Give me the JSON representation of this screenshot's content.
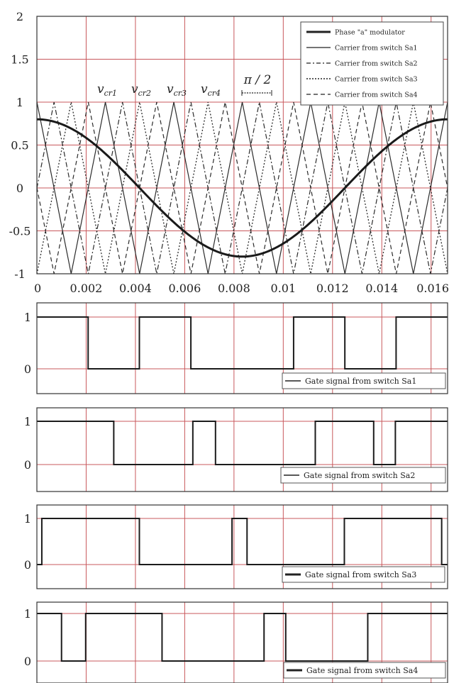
{
  "chart_data": [
    {
      "type": "line",
      "title": "",
      "xlabel": "",
      "ylabel": "",
      "xlim": [
        0,
        0.01667
      ],
      "ylim": [
        -1,
        2
      ],
      "x_ticks": [
        "0",
        "0.002",
        "0.004",
        "0.006",
        "0.008",
        "0.01",
        "0.012",
        "0.014",
        "0.016"
      ],
      "y_ticks": [
        "-1",
        "-0.5",
        "0",
        "0.5",
        "1",
        "1.5",
        "2"
      ],
      "grid": true,
      "legend_position": "top-right",
      "modulator": {
        "name": "Phase \"a\" modulator",
        "amplitude": 0.8,
        "period": 0.01667,
        "phase": "cos"
      },
      "carrier": {
        "period": 0.002778,
        "min": -1,
        "max": 1,
        "peak_of_vcr1_at": 0.00278
      },
      "series": [
        {
          "name": "Phase \"a\" modulator",
          "style": "thick-solid"
        },
        {
          "name": "Carrier from switch Sa1",
          "style": "solid"
        },
        {
          "name": "Carrier from switch Sa2",
          "style": "dash-dot"
        },
        {
          "name": "Carrier from switch Sa3",
          "style": "dotted"
        },
        {
          "name": "Carrier from switch Sa4",
          "style": "dashed"
        }
      ],
      "annotations": {
        "vcr": [
          {
            "main": "v",
            "sub": "cr1"
          },
          {
            "main": "v",
            "sub": "cr2"
          },
          {
            "main": "v",
            "sub": "cr3"
          },
          {
            "main": "v",
            "sub": "cr4"
          }
        ],
        "phase_shift": "π / 2"
      }
    },
    {
      "type": "line",
      "legend": "Gate signal from switch Sa1",
      "y_ticks": [
        "1",
        "0"
      ],
      "x": [
        0,
        0.00208,
        0.00208,
        0.00416,
        0.00416,
        0.00625,
        0.00625,
        0.01042,
        0.01042,
        0.0125,
        0.0125,
        0.01458,
        0.01458,
        0.01667
      ],
      "values": [
        1,
        1,
        0,
        0,
        1,
        1,
        0,
        0,
        1,
        1,
        0,
        0,
        1,
        1
      ]
    },
    {
      "type": "line",
      "legend": "Gate signal from  switch Sa2",
      "y_ticks": [
        "1",
        "0"
      ],
      "x": [
        0,
        0.00312,
        0.00312,
        0.00633,
        0.00633,
        0.00725,
        0.00725,
        0.0113,
        0.0113,
        0.01367,
        0.01367,
        0.01455,
        0.01455,
        0.01667
      ],
      "values": [
        1,
        1,
        0,
        0,
        1,
        1,
        0,
        0,
        1,
        1,
        0,
        0,
        1,
        1
      ]
    },
    {
      "type": "line",
      "legend": "Gate signal from switch Sa3",
      "y_ticks": [
        "1",
        "0"
      ],
      "x": [
        0,
        0.0002,
        0.0002,
        0.00416,
        0.00416,
        0.00792,
        0.00792,
        0.00853,
        0.00853,
        0.01248,
        0.01248,
        0.01643,
        0.01643,
        0.01667
      ],
      "values": [
        0,
        0,
        1,
        1,
        0,
        0,
        1,
        1,
        0,
        0,
        1,
        1,
        0,
        0
      ]
    },
    {
      "type": "line",
      "legend": "Gate signal from switch Sa4",
      "y_ticks": [
        "1",
        "0"
      ],
      "x": [
        0,
        0.001,
        0.001,
        0.00198,
        0.00198,
        0.00508,
        0.00508,
        0.00922,
        0.00922,
        0.0101,
        0.0101,
        0.01343,
        0.01343,
        0.01667
      ],
      "values": [
        1,
        1,
        0,
        0,
        1,
        1,
        0,
        0,
        1,
        1,
        0,
        0,
        1,
        1
      ]
    }
  ]
}
